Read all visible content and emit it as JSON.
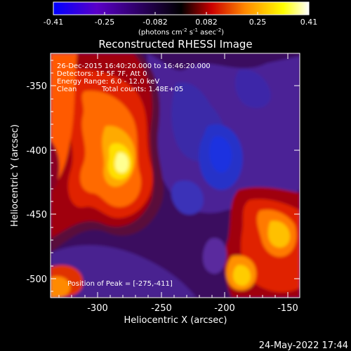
{
  "colorbar": {
    "tick_labels": [
      "-0.41",
      "-0.25",
      "-0.082",
      "0.082",
      "0.25",
      "0.41"
    ],
    "units_prefix": "(photons cm",
    "units_exp1": "-2",
    "units_mid1": " s",
    "units_exp2": "-1",
    "units_mid2": " asec",
    "units_exp3": "-2",
    "units_suffix": ")",
    "range": [
      -0.41,
      0.41
    ],
    "palette": [
      "#0000ff",
      "#5a00c8",
      "#000000",
      "#cc0000",
      "#ff8800",
      "#ffff00",
      "#ffffff"
    ]
  },
  "title": "Reconstructed RHESSI Image",
  "info": {
    "line1": "26-Dec-2015 16:40:20.000 to 16:46:20.000",
    "line2": "Detectors: 1F 5F 7F, Att 0",
    "line3": "Energy Range: 6.0 - 12.0 keV",
    "line4_a": "Clean",
    "line4_b": "Total counts: 1.48E+05"
  },
  "peak_text": "Position of Peak = [-275,-411]",
  "axes": {
    "xlabel": "Heliocentric X (arcsec)",
    "ylabel": "Heliocentric Y (arcsec)",
    "x_ticks": [
      "-300",
      "-250",
      "-200",
      "-150"
    ],
    "y_ticks": [
      "-350",
      "-400",
      "-450",
      "-500"
    ],
    "xlim": [
      -333,
      -138
    ],
    "ylim": [
      -517,
      -320
    ]
  },
  "timestamp": "24-May-2022 17:44"
}
